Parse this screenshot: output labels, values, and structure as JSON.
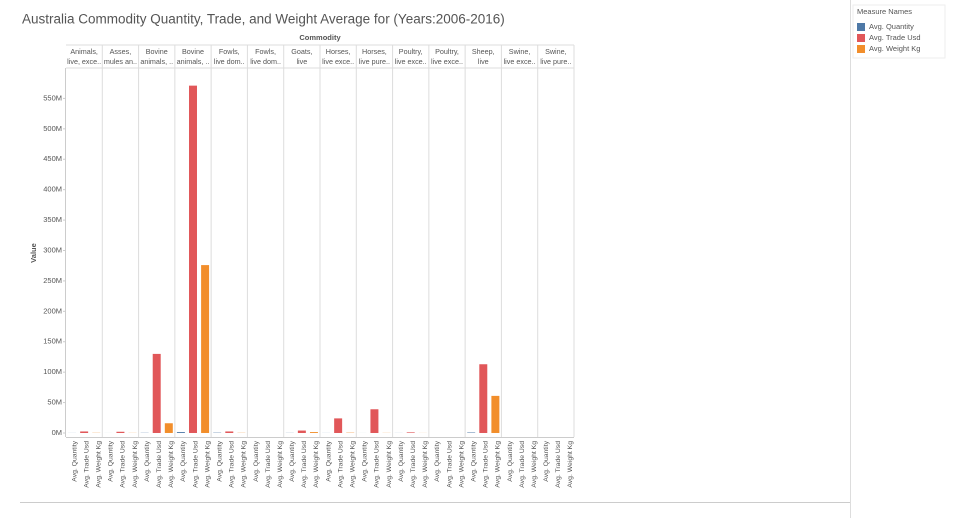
{
  "chart_data": {
    "type": "bar",
    "title": "Australia Commodity Quantity, Trade, and Weight Average for (Years:2006-2016)",
    "column_header": "Commodity",
    "y_label": "Value",
    "legend_title": "Measure Names",
    "categories": [
      [
        "Animals,",
        "live, exce.."
      ],
      [
        "Asses,",
        "mules an.."
      ],
      [
        "Bovine",
        "animals, .."
      ],
      [
        "Bovine",
        "animals, .."
      ],
      [
        "Fowls,",
        "live dom.."
      ],
      [
        "Fowls,",
        "live dom.."
      ],
      [
        "Goats,",
        "live"
      ],
      [
        "Horses,",
        "live exce.."
      ],
      [
        "Horses,",
        "live pure.."
      ],
      [
        "Poultry,",
        "live exce.."
      ],
      [
        "Poultry,",
        "live exce.."
      ],
      [
        "Sheep,",
        "live"
      ],
      [
        "Swine,",
        "live exce.."
      ],
      [
        "Swine,",
        "live pure.."
      ]
    ],
    "series": [
      {
        "name": "Avg. Quantity",
        "color": "#4e79a7",
        "values": [
          100000,
          50000,
          300000,
          1500000,
          500000,
          0,
          200000,
          100000,
          50000,
          100000,
          0,
          800000,
          0,
          0
        ]
      },
      {
        "name": "Avg. Trade Usd",
        "color": "#e15759",
        "values": [
          2500000,
          2000000,
          130000000,
          571000000,
          2500000,
          0,
          4000000,
          24000000,
          39000000,
          1000000,
          0,
          113000000,
          0,
          0
        ]
      },
      {
        "name": "Avg. Weight Kg",
        "color": "#f28e2b",
        "values": [
          300000,
          200000,
          16000000,
          276000000,
          300000,
          0,
          1500000,
          500000,
          200000,
          100000,
          0,
          61000000,
          0,
          0
        ]
      }
    ],
    "ylim": [
      -6600000,
      600000000
    ],
    "yticks": [
      {
        "value": 0,
        "label": "0M"
      },
      {
        "value": 50000000,
        "label": "50M"
      },
      {
        "value": 100000000,
        "label": "100M"
      },
      {
        "value": 150000000,
        "label": "150M"
      },
      {
        "value": 200000000,
        "label": "200M"
      },
      {
        "value": 250000000,
        "label": "250M"
      },
      {
        "value": 300000000,
        "label": "300M"
      },
      {
        "value": 350000000,
        "label": "350M"
      },
      {
        "value": 400000000,
        "label": "400M"
      },
      {
        "value": 450000000,
        "label": "450M"
      },
      {
        "value": 500000000,
        "label": "500M"
      },
      {
        "value": 550000000,
        "label": "550M"
      }
    ],
    "grid": false
  }
}
